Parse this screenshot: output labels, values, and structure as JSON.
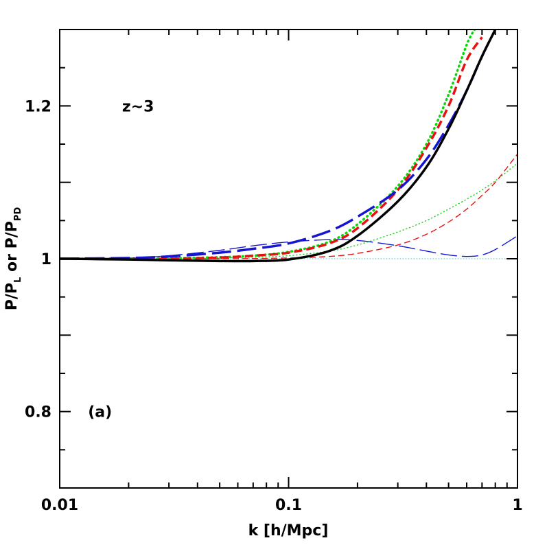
{
  "chart_data": {
    "type": "line",
    "xlabel": "k [h/Mpc]",
    "ylabel_parts": [
      "P/P",
      "L",
      " or P/P",
      "PD"
    ],
    "xscale": "log",
    "xlim": [
      0.01,
      1
    ],
    "ylim": [
      0.7,
      1.3
    ],
    "x_ticks": [
      {
        "value": 0.01,
        "label": "0.01"
      },
      {
        "value": 0.1,
        "label": "0.1"
      },
      {
        "value": 1,
        "label": "1"
      }
    ],
    "y_ticks": [
      {
        "value": 0.8,
        "label": "0.8"
      },
      {
        "value": 1.0,
        "label": "1"
      },
      {
        "value": 1.2,
        "label": "1.2"
      }
    ],
    "y_minor_step": 0.05,
    "annotations": [
      {
        "text": "z~3",
        "x": 0.022,
        "y": 1.2
      },
      {
        "text": "(a)",
        "x": 0.015,
        "y": 0.8
      }
    ],
    "grid": false,
    "legend": "none",
    "series": [
      {
        "color": "#0bd60b",
        "style": "dotted",
        "weight": "thick",
        "x": [
          0.01,
          0.02,
          0.03,
          0.05,
          0.07,
          0.1,
          0.15,
          0.2,
          0.3,
          0.4,
          0.5,
          0.6,
          0.65
        ],
        "y": [
          1.0,
          1.0,
          1.0005,
          1.002,
          1.004,
          1.009,
          1.022,
          1.045,
          1.095,
          1.15,
          1.215,
          1.28,
          1.3
        ]
      },
      {
        "color": "#e81010",
        "style": "dashed",
        "weight": "thick",
        "x": [
          0.01,
          0.02,
          0.03,
          0.05,
          0.07,
          0.1,
          0.15,
          0.2,
          0.3,
          0.4,
          0.5,
          0.6,
          0.7
        ],
        "y": [
          1.0,
          1.0,
          1.0,
          1.0015,
          1.004,
          1.008,
          1.02,
          1.04,
          1.09,
          1.145,
          1.2,
          1.26,
          1.29
        ]
      },
      {
        "color": "#1414d2",
        "style": "longdash",
        "weight": "thick",
        "x": [
          0.01,
          0.02,
          0.03,
          0.05,
          0.07,
          0.1,
          0.15,
          0.2,
          0.3,
          0.4,
          0.5,
          0.6,
          0.7,
          0.8
        ],
        "y": [
          1.0,
          1.001,
          1.003,
          1.008,
          1.013,
          1.02,
          1.036,
          1.055,
          1.09,
          1.13,
          1.175,
          1.22,
          1.265,
          1.3
        ]
      },
      {
        "color": "#000000",
        "style": "solid",
        "weight": "thick",
        "x": [
          0.01,
          0.02,
          0.03,
          0.05,
          0.07,
          0.1,
          0.15,
          0.2,
          0.3,
          0.4,
          0.5,
          0.6,
          0.7,
          0.8
        ],
        "y": [
          1.0,
          0.999,
          0.998,
          0.997,
          0.997,
          0.999,
          1.01,
          1.03,
          1.075,
          1.12,
          1.17,
          1.22,
          1.265,
          1.3
        ]
      },
      {
        "color": "#1414d2",
        "style": "longdash",
        "weight": "thin",
        "x": [
          0.01,
          0.02,
          0.03,
          0.05,
          0.07,
          0.1,
          0.15,
          0.2,
          0.3,
          0.4,
          0.5,
          0.6,
          0.7,
          0.8,
          1.0
        ],
        "y": [
          1.0,
          1.001,
          1.004,
          1.011,
          1.017,
          1.022,
          1.025,
          1.024,
          1.017,
          1.01,
          1.005,
          1.003,
          1.005,
          1.012,
          1.03
        ]
      },
      {
        "color": "#0bd60b",
        "style": "dotted",
        "weight": "thin",
        "x": [
          0.01,
          0.03,
          0.05,
          0.07,
          0.1,
          0.15,
          0.2,
          0.3,
          0.4,
          0.5,
          0.6,
          0.7,
          0.8,
          1.0
        ],
        "y": [
          1.0,
          1.0,
          1.001,
          1.002,
          1.004,
          1.01,
          1.018,
          1.035,
          1.05,
          1.065,
          1.078,
          1.09,
          1.102,
          1.125
        ]
      },
      {
        "color": "#e81010",
        "style": "dashed",
        "weight": "thin",
        "x": [
          0.01,
          0.05,
          0.1,
          0.15,
          0.2,
          0.3,
          0.4,
          0.5,
          0.6,
          0.7,
          0.8,
          1.0
        ],
        "y": [
          1.0,
          1.0,
          1.001,
          1.003,
          1.007,
          1.018,
          1.032,
          1.048,
          1.065,
          1.083,
          1.1,
          1.137
        ]
      },
      {
        "color": "#35c9c9",
        "style": "dotted",
        "weight": "hair",
        "x": [
          0.01,
          0.1,
          0.3,
          1.0
        ],
        "y": [
          1.0,
          1.0,
          1.0,
          1.0
        ]
      }
    ]
  }
}
